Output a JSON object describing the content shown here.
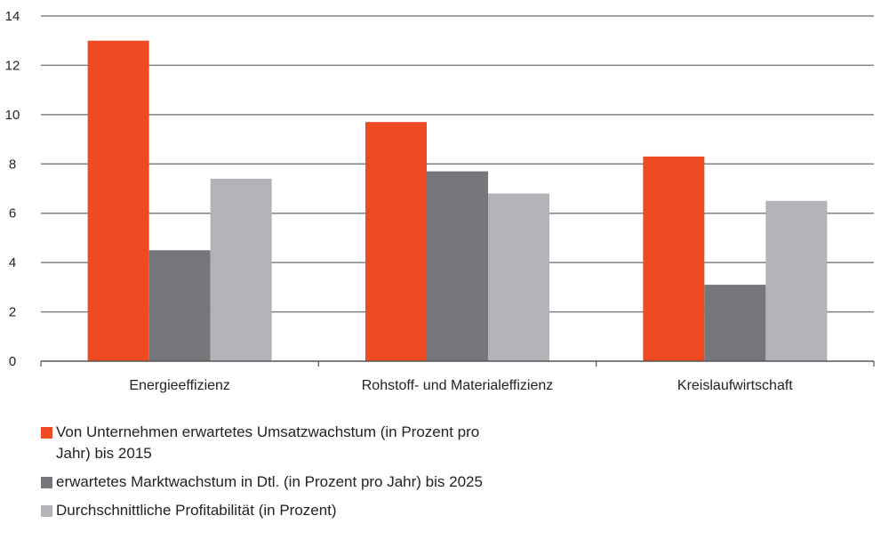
{
  "chart_data": {
    "type": "bar",
    "categories": [
      "Energieeffizienz",
      "Rohstoff- und Materialeffizienz",
      "Kreislaufwirtschaft"
    ],
    "series": [
      {
        "name": "Von Unternehmen erwartetes Umsatzwachstum (in Prozent pro Jahr) bis 2015",
        "color": "#ef4b23",
        "values": [
          13.0,
          9.7,
          8.3
        ]
      },
      {
        "name": "erwartetes Marktwachstum in Dtl. (in Prozent pro Jahr) bis 2025",
        "color": "#76777a",
        "values": [
          4.5,
          7.7,
          3.1
        ]
      },
      {
        "name": "Durchschnittliche Profitabilität (in Prozent)",
        "color": "#b2b3b6",
        "values": [
          7.4,
          6.8,
          6.5
        ]
      }
    ],
    "yticks": [
      0,
      2,
      4,
      6,
      8,
      10,
      12,
      14
    ],
    "ylim": [
      0,
      14
    ],
    "grid": true,
    "gridline_color": "#7f8082",
    "legend_position": "bottom-left"
  }
}
